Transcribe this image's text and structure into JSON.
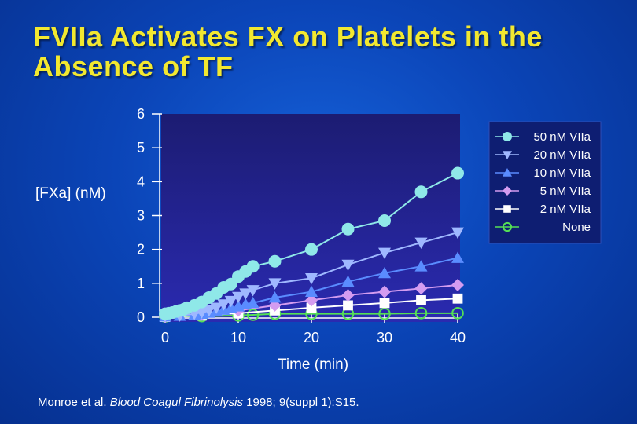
{
  "slide": {
    "title_line1": "FVIIa Activates FX on Platelets in the",
    "title_line2": "Absence of TF"
  },
  "citation": {
    "authors": "Monroe et al. ",
    "journal": "Blood Coagul Fibrinolysis",
    "details": " 1998; 9(suppl 1):S15."
  },
  "colors": {
    "background": "#0b45b8",
    "plot_background": "#1a1a70",
    "title": "#f2e830"
  },
  "chart_data": {
    "type": "line",
    "title": "",
    "xlabel": "Time (min)",
    "ylabel": "[FXa] (nM)",
    "xlim": [
      0,
      40
    ],
    "ylim": [
      0,
      6
    ],
    "xticks": [
      0,
      10,
      20,
      30,
      40
    ],
    "yticks": [
      0,
      1,
      2,
      3,
      4,
      5,
      6
    ],
    "grid": false,
    "legend_position": "top-right",
    "series": [
      {
        "name": "50 nM VIIa",
        "color": "#8fe8e8",
        "marker": "circle-filled",
        "x": [
          0,
          0.5,
          1,
          1.5,
          2,
          2.5,
          3,
          4,
          5,
          6,
          7,
          8,
          9,
          10,
          11,
          12,
          15,
          20,
          25,
          30,
          35,
          40
        ],
        "y": [
          0.1,
          0.12,
          0.14,
          0.17,
          0.2,
          0.23,
          0.28,
          0.35,
          0.45,
          0.58,
          0.7,
          0.88,
          0.98,
          1.2,
          1.35,
          1.5,
          1.65,
          2.0,
          2.6,
          2.85,
          3.7,
          4.25
        ]
      },
      {
        "name": "20 nM VIIa",
        "color": "#9fb8ff",
        "marker": "triangle-down",
        "x": [
          0,
          2,
          4,
          5,
          6,
          7,
          8,
          9,
          10,
          11,
          12,
          15,
          20,
          25,
          30,
          35,
          40
        ],
        "y": [
          0.03,
          0.05,
          0.1,
          0.14,
          0.2,
          0.28,
          0.38,
          0.48,
          0.6,
          0.7,
          0.8,
          1.0,
          1.15,
          1.55,
          1.9,
          2.2,
          2.5
        ]
      },
      {
        "name": "10 nM VIIa",
        "color": "#5a8cff",
        "marker": "triangle-up",
        "x": [
          0,
          2,
          4,
          5,
          6,
          7,
          8,
          9,
          10,
          11,
          12,
          15,
          20,
          25,
          30,
          35,
          40
        ],
        "y": [
          0.02,
          0.04,
          0.07,
          0.1,
          0.13,
          0.17,
          0.22,
          0.27,
          0.32,
          0.38,
          0.42,
          0.58,
          0.75,
          1.05,
          1.3,
          1.5,
          1.75
        ]
      },
      {
        "name": "5 nM VIIa",
        "color": "#d49cf0",
        "marker": "diamond",
        "x": [
          0,
          5,
          10,
          15,
          20,
          25,
          30,
          35,
          40
        ],
        "y": [
          0.01,
          0.08,
          0.2,
          0.35,
          0.5,
          0.65,
          0.75,
          0.85,
          0.95
        ]
      },
      {
        "name": "2 nM VIIa",
        "color": "#ffffff",
        "marker": "square",
        "x": [
          0,
          5,
          10,
          15,
          20,
          25,
          30,
          35,
          40
        ],
        "y": [
          0.01,
          0.05,
          0.12,
          0.2,
          0.28,
          0.35,
          0.42,
          0.5,
          0.55
        ]
      },
      {
        "name": "None",
        "color": "#55e055",
        "marker": "circle-open",
        "x": [
          0,
          5,
          10,
          12,
          15,
          20,
          25,
          30,
          35,
          40
        ],
        "y": [
          0.02,
          0.03,
          0.05,
          0.07,
          0.1,
          0.1,
          0.1,
          0.1,
          0.12,
          0.12
        ]
      }
    ]
  }
}
